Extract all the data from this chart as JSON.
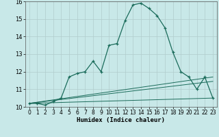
{
  "xlabel": "Humidex (Indice chaleur)",
  "background_color": "#c8e8e8",
  "grid_color": "#b0cccc",
  "line_color": "#1a6b5a",
  "xlim": [
    -0.5,
    23.5
  ],
  "ylim": [
    10.0,
    16.0
  ],
  "yticks": [
    10,
    11,
    12,
    13,
    14,
    15,
    16
  ],
  "xticks": [
    0,
    1,
    2,
    3,
    4,
    5,
    6,
    7,
    8,
    9,
    10,
    11,
    12,
    13,
    14,
    15,
    16,
    17,
    18,
    19,
    20,
    21,
    22,
    23
  ],
  "series_main_x": [
    0,
    1,
    2,
    3,
    4,
    5,
    6,
    7,
    8,
    9,
    10,
    11,
    12,
    13,
    14,
    15,
    16,
    17,
    18,
    19,
    20,
    21,
    22,
    23
  ],
  "series_main_y": [
    10.2,
    10.2,
    10.1,
    10.3,
    10.5,
    11.7,
    11.9,
    12.0,
    12.6,
    12.0,
    13.5,
    13.6,
    14.9,
    15.8,
    15.9,
    15.6,
    15.2,
    14.5,
    13.1,
    12.0,
    11.7,
    11.0,
    11.7,
    10.5
  ],
  "flat_lines": [
    {
      "x": [
        0,
        23
      ],
      "y": [
        10.2,
        11.7
      ]
    },
    {
      "x": [
        0,
        23
      ],
      "y": [
        10.2,
        11.45
      ]
    },
    {
      "x": [
        0,
        23
      ],
      "y": [
        10.2,
        10.5
      ]
    }
  ]
}
